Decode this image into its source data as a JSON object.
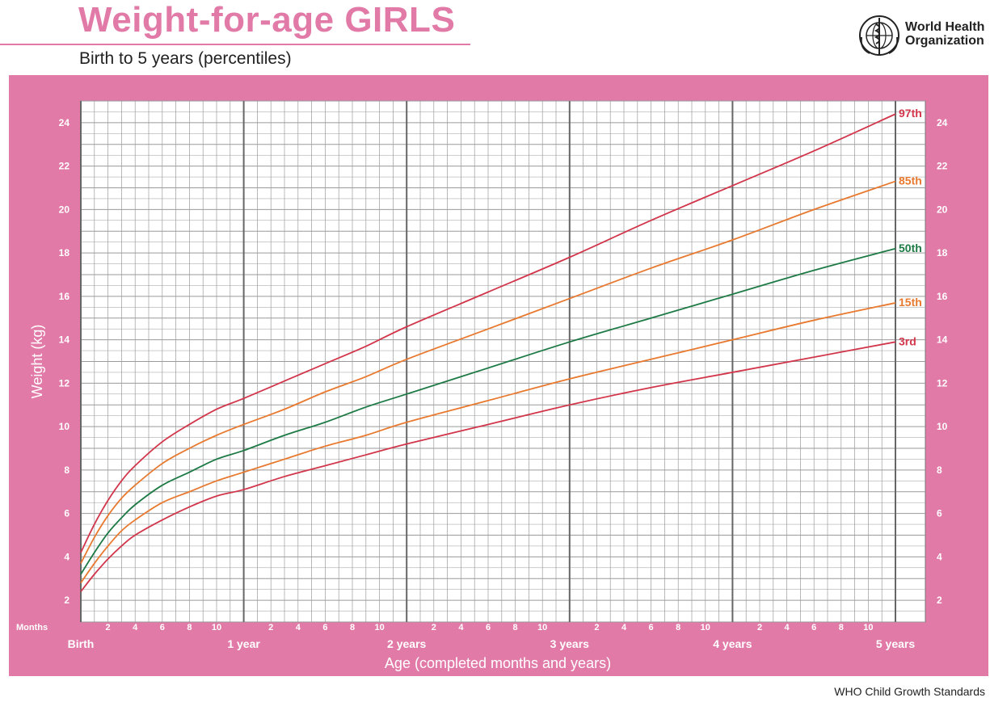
{
  "header": {
    "title": "Weight-for-age GIRLS",
    "subtitle": "Birth to 5 years (percentiles)"
  },
  "logo": {
    "line1": "World Health",
    "line2": "Organization",
    "icon": "who-emblem-icon"
  },
  "footer": {
    "text": "WHO Child Growth Standards"
  },
  "colors": {
    "panel": "#e27aa8",
    "grid": "#9a9a9a",
    "grid_major": "#666666",
    "p3": "#d2364b",
    "p15": "#e8792f",
    "p50": "#1d7a45",
    "p85": "#e8792f",
    "p97": "#d2364b"
  },
  "chart_data": {
    "type": "line",
    "title": "Weight-for-age GIRLS",
    "subtitle": "Birth to 5 years (percentiles)",
    "xlabel": "Age (completed months and years)",
    "ylabel": "Weight (kg)",
    "xlim": [
      0,
      60
    ],
    "ylim": [
      1,
      25
    ],
    "x_unit": "months",
    "months_label": "Months",
    "month_ticks": [
      2,
      4,
      6,
      8,
      10
    ],
    "year_labels": [
      {
        "month": 0,
        "label": "Birth"
      },
      {
        "month": 12,
        "label": "1 year"
      },
      {
        "month": 24,
        "label": "2 years"
      },
      {
        "month": 36,
        "label": "3 years"
      },
      {
        "month": 48,
        "label": "4 years"
      },
      {
        "month": 60,
        "label": "5 years"
      }
    ],
    "y_ticks": [
      2,
      4,
      6,
      8,
      10,
      12,
      14,
      16,
      18,
      20,
      22,
      24
    ],
    "grid": true,
    "x": [
      0,
      1,
      2,
      3,
      4,
      6,
      8,
      10,
      12,
      15,
      18,
      21,
      24,
      30,
      36,
      42,
      48,
      54,
      60
    ],
    "series": [
      {
        "name": "97th",
        "key": "p97",
        "values": [
          4.2,
          5.5,
          6.6,
          7.5,
          8.2,
          9.3,
          10.1,
          10.8,
          11.3,
          12.1,
          12.9,
          13.7,
          14.6,
          16.2,
          17.8,
          19.5,
          21.1,
          22.7,
          24.4
        ]
      },
      {
        "name": "85th",
        "key": "p85",
        "values": [
          3.7,
          4.9,
          5.9,
          6.7,
          7.3,
          8.3,
          9.0,
          9.6,
          10.1,
          10.8,
          11.6,
          12.3,
          13.1,
          14.5,
          15.9,
          17.3,
          18.6,
          20.0,
          21.3
        ]
      },
      {
        "name": "50th",
        "key": "p50",
        "values": [
          3.2,
          4.2,
          5.1,
          5.8,
          6.4,
          7.3,
          7.9,
          8.5,
          8.9,
          9.6,
          10.2,
          10.9,
          11.5,
          12.7,
          13.9,
          15.0,
          16.1,
          17.2,
          18.2
        ]
      },
      {
        "name": "15th",
        "key": "p15",
        "values": [
          2.8,
          3.7,
          4.5,
          5.2,
          5.7,
          6.5,
          7.0,
          7.5,
          7.9,
          8.5,
          9.1,
          9.6,
          10.2,
          11.2,
          12.2,
          13.1,
          14.0,
          14.9,
          15.7
        ]
      },
      {
        "name": "3rd",
        "key": "p3",
        "values": [
          2.4,
          3.2,
          3.9,
          4.5,
          5.0,
          5.7,
          6.3,
          6.8,
          7.1,
          7.7,
          8.2,
          8.7,
          9.2,
          10.1,
          11.0,
          11.8,
          12.5,
          13.2,
          13.9
        ]
      }
    ]
  }
}
